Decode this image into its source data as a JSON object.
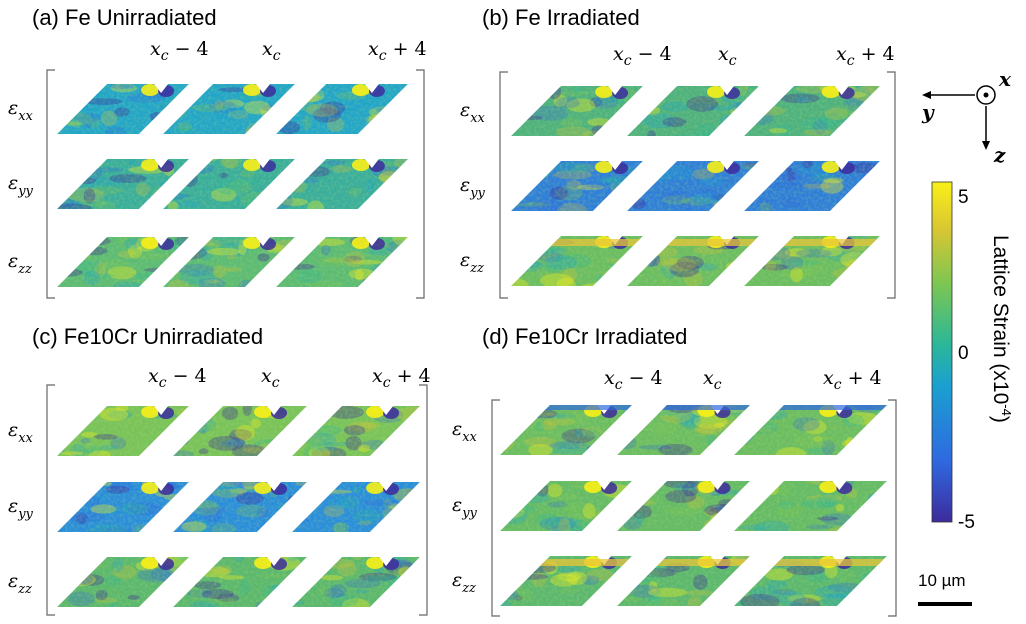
{
  "panels": [
    {
      "id": "a",
      "title": "(a) Fe Unirradiated"
    },
    {
      "id": "b",
      "title": "(b) Fe Irradiated"
    },
    {
      "id": "c",
      "title": "(c) Fe10Cr Unirradiated"
    },
    {
      "id": "d",
      "title": "(d) Fe10Cr Irradiated"
    }
  ],
  "column_labels": [
    {
      "base": "x",
      "sub": "c",
      "suffix": " − 4"
    },
    {
      "base": "x",
      "sub": "c",
      "suffix": ""
    },
    {
      "base": "x",
      "sub": "c",
      "suffix": " + 4"
    }
  ],
  "row_labels": [
    {
      "base": "ε",
      "sub": "xx"
    },
    {
      "base": "ε",
      "sub": "yy"
    },
    {
      "base": "ε",
      "sub": "zz"
    }
  ],
  "colorbar": {
    "label": "Lattice Strain (x10",
    "label_exp": "-4",
    "label_close": ")",
    "ticks": [
      "5",
      "0",
      "-5"
    ],
    "min": -5,
    "max": 5,
    "colors": [
      "#3d2b9c",
      "#2f69e0",
      "#1aa0d0",
      "#2ab79a",
      "#7cc652",
      "#d8c632",
      "#f8f018"
    ]
  },
  "axes": {
    "x": "x",
    "y": "y",
    "z": "z"
  },
  "scale_bar": {
    "label": "10 µm"
  }
}
